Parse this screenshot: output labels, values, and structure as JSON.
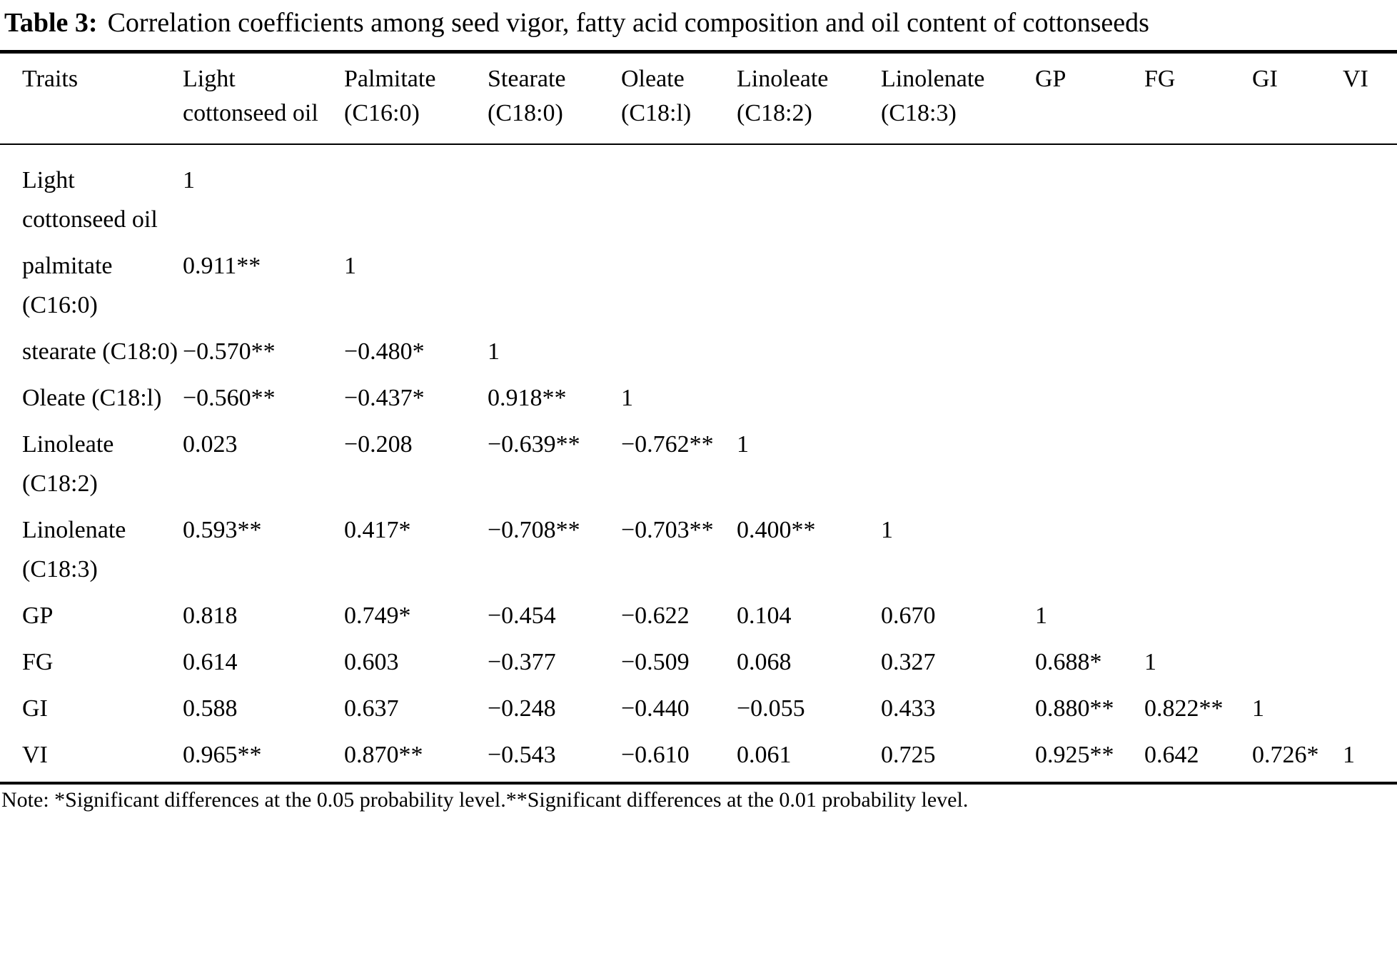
{
  "title": {
    "label": "Table 3:",
    "text": "Correlation coefficients among seed vigor, fatty acid composition and oil content of cottonseeds"
  },
  "table": {
    "columns": [
      "Traits",
      "Light cottonseed oil",
      "Palmitate (C16:0)",
      "Stearate (C18:0)",
      "Oleate (C18:l)",
      "Linoleate (C18:2)",
      "Linolenate (C18:3)",
      "GP",
      "FG",
      "GI",
      "VI"
    ],
    "rows": [
      {
        "trait": "Light cottonseed oil",
        "cells": [
          "1",
          "",
          "",
          "",
          "",
          "",
          "",
          "",
          "",
          ""
        ]
      },
      {
        "trait": "palmitate (C16:0)",
        "cells": [
          "0.911**",
          "1",
          "",
          "",
          "",
          "",
          "",
          "",
          "",
          ""
        ]
      },
      {
        "trait": "stearate (C18:0)",
        "cells": [
          "−0.570**",
          "−0.480*",
          "1",
          "",
          "",
          "",
          "",
          "",
          "",
          ""
        ]
      },
      {
        "trait": "Oleate (C18:l)",
        "cells": [
          "−0.560**",
          "−0.437*",
          "0.918**",
          "1",
          "",
          "",
          "",
          "",
          "",
          ""
        ]
      },
      {
        "trait": "Linoleate (C18:2)",
        "cells": [
          "0.023",
          "−0.208",
          "−0.639**",
          "−0.762**",
          "1",
          "",
          "",
          "",
          "",
          ""
        ]
      },
      {
        "trait": "Linolenate (C18:3)",
        "cells": [
          "0.593**",
          "0.417*",
          "−0.708**",
          "−0.703**",
          "0.400**",
          "1",
          "",
          "",
          "",
          ""
        ]
      },
      {
        "trait": "GP",
        "cells": [
          "0.818",
          "0.749*",
          "−0.454",
          "−0.622",
          "0.104",
          "0.670",
          "1",
          "",
          "",
          ""
        ]
      },
      {
        "trait": "FG",
        "cells": [
          "0.614",
          "0.603",
          "−0.377",
          "−0.509",
          "0.068",
          "0.327",
          "0.688*",
          "1",
          "",
          ""
        ]
      },
      {
        "trait": "GI",
        "cells": [
          "0.588",
          "0.637",
          "−0.248",
          "−0.440",
          "−0.055",
          "0.433",
          "0.880**",
          "0.822**",
          "1",
          ""
        ]
      },
      {
        "trait": "VI",
        "cells": [
          "0.965**",
          "0.870**",
          "−0.543",
          "−0.610",
          "0.061",
          "0.725",
          "0.925**",
          "0.642",
          "0.726*",
          "1"
        ]
      }
    ]
  },
  "note": "Note: *Significant differences at the 0.05 probability level.**Significant differences at the 0.01 probability level."
}
